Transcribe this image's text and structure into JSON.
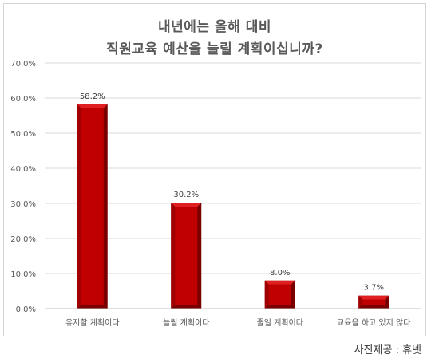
{
  "chart_data": {
    "type": "bar",
    "title_lines": [
      "내년에는 올해 대비",
      "직원교육 예산을 늘릴 계획이십니까?"
    ],
    "categories": [
      "유지할 계획이다",
      "늘릴 계획이다",
      "줄일 계획이다",
      "교육을 하고 있지 않다"
    ],
    "values": [
      58.2,
      30.2,
      8.0,
      3.7
    ],
    "value_labels": [
      "58.2%",
      "30.2%",
      "8.0%",
      "3.7%"
    ],
    "ylim": [
      0,
      70
    ],
    "yticks": [
      0,
      10,
      20,
      30,
      40,
      50,
      60,
      70
    ],
    "ytick_labels": [
      "0.0%",
      "10.0%",
      "20.0%",
      "30.0%",
      "40.0%",
      "50.0%",
      "60.0%",
      "70.0%"
    ],
    "grid": true,
    "legend": false,
    "bar_color": "#c00000",
    "bar_dark_color": "#7a0000",
    "bar_light_color": "#e02020"
  },
  "credit": "사진제공 : 휴넷"
}
